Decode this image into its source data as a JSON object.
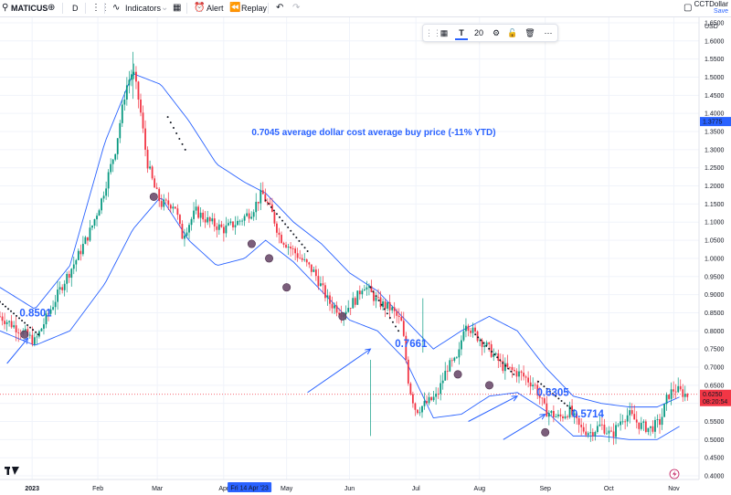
{
  "toolbar": {
    "symbol": "MATICUS",
    "interval": "D",
    "indicators": "Indicators",
    "alert": "Alert",
    "replay": "Replay",
    "account_name": "CCTDollar",
    "account_save": "Save"
  },
  "drawing_toolbar": {
    "font_size": "20"
  },
  "chart_data": {
    "type": "candlestick",
    "symbol": "MATICUS",
    "currency": "USD",
    "y_ticks": [
      "1.6500",
      "1.6000",
      "1.5500",
      "1.5000",
      "1.4500",
      "1.4000",
      "1.3500",
      "1.3000",
      "1.2500",
      "1.2000",
      "1.1500",
      "1.1000",
      "1.0500",
      "1.0000",
      "0.9500",
      "0.9000",
      "0.8500",
      "0.8000",
      "0.7500",
      "0.7000",
      "0.6500",
      "0.6000",
      "0.5500",
      "0.5000",
      "0.4500",
      "0.4000"
    ],
    "ylim": [
      0.39,
      1.665
    ],
    "x_ticks": [
      "2023",
      "Feb",
      "Mar",
      "Apr",
      "May",
      "Jun",
      "Jul",
      "Aug",
      "Sep",
      "Oct",
      "Nov"
    ],
    "x_highlight": "Fri 14 Apr '23",
    "price_badges": {
      "crosshair": "1.3775",
      "last_price": "0.6250",
      "countdown": "08:20:54"
    },
    "annotations": [
      {
        "text": "0.7045 average dollar cost average buy price (-11% YTD)",
        "price": 1.35
      },
      {
        "text": "0.8501",
        "price": 0.85
      },
      {
        "text": "0.7661",
        "price": 0.766
      },
      {
        "text": "0.6305",
        "price": 0.6305
      },
      {
        "text": "0.5714",
        "price": 0.5714
      }
    ],
    "close_path": [
      [
        0.0,
        0.84
      ],
      [
        0.03,
        0.8
      ],
      [
        0.05,
        0.77
      ],
      [
        0.07,
        0.85
      ],
      [
        0.09,
        0.93
      ],
      [
        0.11,
        1.0
      ],
      [
        0.13,
        1.08
      ],
      [
        0.145,
        1.16
      ],
      [
        0.165,
        1.3
      ],
      [
        0.18,
        1.47
      ],
      [
        0.19,
        1.52
      ],
      [
        0.2,
        1.42
      ],
      [
        0.21,
        1.27
      ],
      [
        0.22,
        1.2
      ],
      [
        0.23,
        1.15
      ],
      [
        0.25,
        1.15
      ],
      [
        0.26,
        1.06
      ],
      [
        0.28,
        1.13
      ],
      [
        0.3,
        1.1
      ],
      [
        0.32,
        1.08
      ],
      [
        0.34,
        1.1
      ],
      [
        0.36,
        1.13
      ],
      [
        0.375,
        1.18
      ],
      [
        0.39,
        1.12
      ],
      [
        0.4,
        1.06
      ],
      [
        0.42,
        1.02
      ],
      [
        0.45,
        0.96
      ],
      [
        0.47,
        0.88
      ],
      [
        0.49,
        0.85
      ],
      [
        0.51,
        0.89
      ],
      [
        0.52,
        0.93
      ],
      [
        0.54,
        0.88
      ],
      [
        0.56,
        0.86
      ],
      [
        0.575,
        0.82
      ],
      [
        0.585,
        0.65
      ],
      [
        0.595,
        0.58
      ],
      [
        0.61,
        0.6
      ],
      [
        0.625,
        0.62
      ],
      [
        0.64,
        0.7
      ],
      [
        0.655,
        0.72
      ],
      [
        0.665,
        0.83
      ],
      [
        0.675,
        0.8
      ],
      [
        0.695,
        0.76
      ],
      [
        0.72,
        0.7
      ],
      [
        0.745,
        0.68
      ],
      [
        0.765,
        0.65
      ],
      [
        0.78,
        0.58
      ],
      [
        0.8,
        0.56
      ],
      [
        0.815,
        0.58
      ],
      [
        0.83,
        0.53
      ],
      [
        0.845,
        0.52
      ],
      [
        0.86,
        0.54
      ],
      [
        0.875,
        0.51
      ],
      [
        0.89,
        0.56
      ],
      [
        0.9,
        0.57
      ],
      [
        0.915,
        0.54
      ],
      [
        0.93,
        0.53
      ],
      [
        0.945,
        0.55
      ],
      [
        0.955,
        0.62
      ],
      [
        0.965,
        0.64
      ],
      [
        0.975,
        0.63
      ],
      [
        0.985,
        0.62
      ]
    ],
    "bollinger_upper": [
      [
        0.0,
        0.92
      ],
      [
        0.05,
        0.86
      ],
      [
        0.1,
        0.98
      ],
      [
        0.15,
        1.32
      ],
      [
        0.19,
        1.51
      ],
      [
        0.23,
        1.48
      ],
      [
        0.27,
        1.38
      ],
      [
        0.31,
        1.26
      ],
      [
        0.35,
        1.21
      ],
      [
        0.38,
        1.18
      ],
      [
        0.42,
        1.1
      ],
      [
        0.46,
        1.04
      ],
      [
        0.5,
        0.96
      ],
      [
        0.54,
        0.91
      ],
      [
        0.58,
        0.83
      ],
      [
        0.62,
        0.75
      ],
      [
        0.66,
        0.8
      ],
      [
        0.7,
        0.84
      ],
      [
        0.74,
        0.8
      ],
      [
        0.78,
        0.7
      ],
      [
        0.82,
        0.62
      ],
      [
        0.86,
        0.6
      ],
      [
        0.9,
        0.59
      ],
      [
        0.94,
        0.59
      ],
      [
        0.975,
        0.62
      ]
    ],
    "bollinger_lower": [
      [
        0.0,
        0.8
      ],
      [
        0.05,
        0.76
      ],
      [
        0.1,
        0.8
      ],
      [
        0.15,
        0.93
      ],
      [
        0.19,
        1.08
      ],
      [
        0.23,
        1.17
      ],
      [
        0.27,
        1.05
      ],
      [
        0.31,
        0.98
      ],
      [
        0.35,
        1.0
      ],
      [
        0.38,
        1.05
      ],
      [
        0.42,
        0.99
      ],
      [
        0.46,
        0.91
      ],
      [
        0.5,
        0.83
      ],
      [
        0.54,
        0.8
      ],
      [
        0.58,
        0.72
      ],
      [
        0.62,
        0.56
      ],
      [
        0.66,
        0.57
      ],
      [
        0.7,
        0.62
      ],
      [
        0.74,
        0.63
      ],
      [
        0.78,
        0.58
      ],
      [
        0.82,
        0.51
      ],
      [
        0.86,
        0.51
      ],
      [
        0.9,
        0.5
      ],
      [
        0.94,
        0.5
      ],
      [
        0.975,
        0.54
      ]
    ],
    "buy_markers": [
      [
        0.035,
        0.79
      ],
      [
        0.22,
        1.17
      ],
      [
        0.36,
        1.04
      ],
      [
        0.385,
        1.0
      ],
      [
        0.41,
        0.92
      ],
      [
        0.49,
        0.84
      ],
      [
        0.655,
        0.68
      ],
      [
        0.7,
        0.65
      ],
      [
        0.78,
        0.52
      ]
    ],
    "psar_segments": [
      [
        [
          0.0,
          0.88
        ],
        [
          0.055,
          0.79
        ]
      ],
      [
        [
          0.24,
          1.39
        ],
        [
          0.265,
          1.3
        ]
      ],
      [
        [
          0.38,
          1.16
        ],
        [
          0.44,
          1.02
        ]
      ],
      [
        [
          0.53,
          0.92
        ],
        [
          0.57,
          0.8
        ]
      ],
      [
        [
          0.68,
          0.79
        ],
        [
          0.735,
          0.68
        ]
      ],
      [
        [
          0.77,
          0.66
        ],
        [
          0.82,
          0.58
        ]
      ]
    ],
    "arrows": [
      [
        [
          0.01,
          0.71
        ],
        [
          0.04,
          0.78
        ]
      ],
      [
        [
          0.44,
          0.63
        ],
        [
          0.53,
          0.75
        ]
      ],
      [
        [
          0.67,
          0.55
        ],
        [
          0.74,
          0.62
        ]
      ],
      [
        [
          0.72,
          0.5
        ],
        [
          0.78,
          0.57
        ]
      ]
    ]
  }
}
